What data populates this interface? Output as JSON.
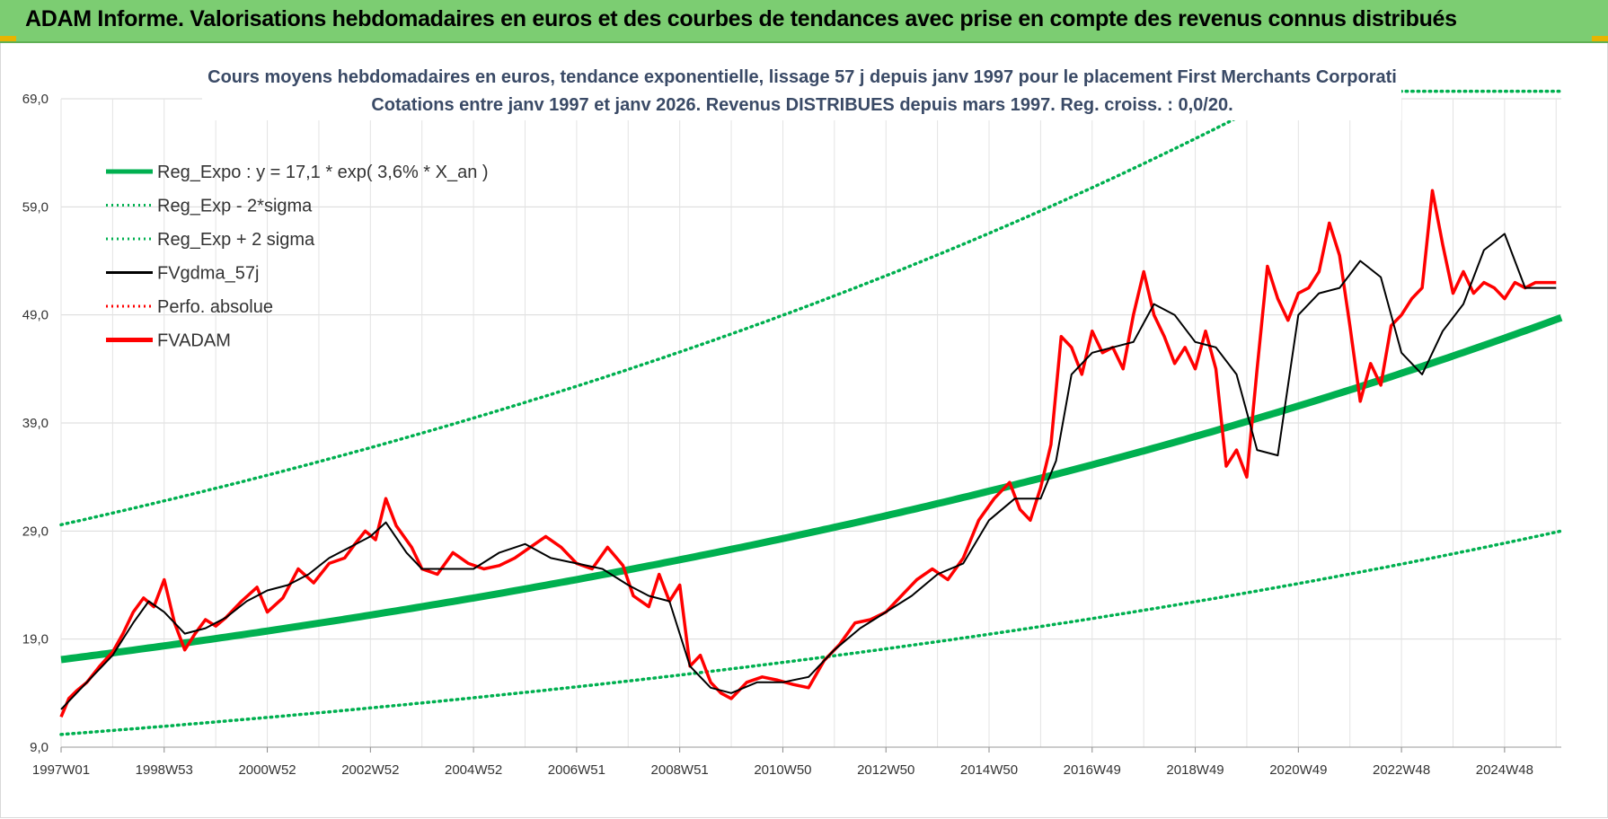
{
  "banner": {
    "title": "ADAM Informe. Valorisations hebdomadaires en euros et des courbes de tendances avec prise en compte des revenus connus distribués"
  },
  "colors": {
    "banner_bg": "#7ccd72",
    "trend": "#00b050",
    "price": "#ff0000",
    "smooth": "#000000",
    "title_text": "#3a4a66"
  },
  "chart_data": {
    "type": "line",
    "title": "Cours moyens hebdomadaires en euros, tendance exponentielle, lissage 57 j depuis janv 1997 pour le placement First Merchants Corporati",
    "subtitle": "Cotations entre janv 1997 et janv 2026. Revenus DISTRIBUES depuis mars 1997.  Reg. croiss. : 0,0/20.",
    "xlabel": "",
    "ylabel": "",
    "ylim": [
      9,
      69
    ],
    "yticks": [
      "69,0",
      "59,0",
      "49,0",
      "39,0",
      "29,0",
      "19,0",
      "9,0"
    ],
    "x_tick_labels": [
      "1997W01",
      "1998W53",
      "2000W52",
      "2002W52",
      "2004W52",
      "2006W51",
      "2008W51",
      "2010W50",
      "2012W50",
      "2014W50",
      "2016W49",
      "2018W49",
      "2020W49",
      "2022W48",
      "2024W48"
    ],
    "xlim": [
      1997.0,
      2026.1
    ],
    "grid": true,
    "legend_position": "top-left",
    "legend": [
      {
        "label": "Reg_Expo : y = 17,1 * exp( 3,6% *  X_an )",
        "style": "solid-thick",
        "color": "#00b050"
      },
      {
        "label": "Reg_Exp - 2*sigma",
        "style": "dotted",
        "color": "#00b050"
      },
      {
        "label": "Reg_Exp + 2 sigma",
        "style": "dotted",
        "color": "#00b050"
      },
      {
        "label": "FVgdma_57j",
        "style": "solid",
        "color": "#000000"
      },
      {
        "label": "Perfo. absolue",
        "style": "dotted",
        "color": "#ff0000"
      },
      {
        "label": "FVADAM",
        "style": "solid-thick",
        "color": "#ff0000"
      }
    ],
    "regression": {
      "a": 17.1,
      "rate": 0.036,
      "sigma_upper_factor": 1.73,
      "sigma_lower_factor": 0.595
    },
    "series": [
      {
        "name": "FVADAM",
        "x": [
          1997.0,
          1997.15,
          1997.3,
          1997.5,
          1997.75,
          1998.0,
          1998.2,
          1998.4,
          1998.6,
          1998.8,
          1999.0,
          1999.2,
          1999.4,
          1999.6,
          1999.8,
          2000.0,
          2000.2,
          2000.5,
          2000.8,
          2001.0,
          2001.3,
          2001.6,
          2001.9,
          2002.2,
          2002.5,
          2002.7,
          2002.9,
          2003.1,
          2003.3,
          2003.5,
          2003.8,
          2004.0,
          2004.3,
          2004.6,
          2004.9,
          2005.2,
          2005.5,
          2005.8,
          2006.1,
          2006.4,
          2006.7,
          2007.0,
          2007.3,
          2007.6,
          2007.9,
          2008.1,
          2008.4,
          2008.6,
          2008.8,
          2009.0,
          2009.2,
          2009.4,
          2009.6,
          2009.8,
          2010.0,
          2010.3,
          2010.6,
          2010.9,
          2011.2,
          2011.5,
          2011.8,
          2012.1,
          2012.4,
          2012.7,
          2013.0,
          2013.3,
          2013.6,
          2013.9,
          2014.2,
          2014.5,
          2014.8,
          2015.1,
          2015.4,
          2015.6,
          2015.8,
          2016.0,
          2016.2,
          2016.4,
          2016.6,
          2016.8,
          2017.0,
          2017.2,
          2017.4,
          2017.6,
          2017.8,
          2018.0,
          2018.2,
          2018.4,
          2018.6,
          2018.8,
          2019.0,
          2019.2,
          2019.4,
          2019.6,
          2019.8,
          2020.0,
          2020.2,
          2020.4,
          2020.6,
          2020.8,
          2021.0,
          2021.2,
          2021.4,
          2021.6,
          2021.8,
          2022.0,
          2022.2,
          2022.4,
          2022.6,
          2022.8,
          2023.0,
          2023.2,
          2023.4,
          2023.6,
          2023.8,
          2024.0,
          2024.2,
          2024.4,
          2024.6,
          2024.8,
          2025.0,
          2025.2,
          2025.4,
          2025.6,
          2025.8,
          2026.0
        ],
        "values": [
          11.8,
          13.5,
          14.2,
          15.0,
          16.5,
          17.8,
          19.5,
          21.5,
          22.8,
          22.0,
          24.5,
          20.5,
          18.0,
          19.5,
          20.8,
          20.2,
          21.0,
          22.5,
          23.8,
          21.5,
          22.8,
          25.5,
          24.2,
          26.0,
          26.5,
          27.8,
          29.0,
          28.2,
          32.0,
          29.5,
          27.5,
          25.5,
          25.0,
          27.0,
          26.0,
          25.5,
          25.8,
          26.5,
          27.5,
          28.5,
          27.5,
          26.0,
          25.5,
          27.5,
          25.8,
          23.0,
          22.0,
          25.0,
          22.5,
          24.0,
          16.5,
          17.5,
          15.0,
          14.0,
          13.5,
          15.0,
          15.5,
          15.2,
          14.8,
          14.5,
          17.0,
          18.5,
          20.5,
          20.8,
          21.5,
          23.0,
          24.5,
          25.5,
          24.5,
          26.5,
          30.0,
          32.0,
          33.5,
          31.0,
          30.0,
          33.0,
          37.0,
          47.0,
          46.0,
          43.5,
          47.5,
          45.5,
          46.0,
          44.0,
          49.0,
          53.0,
          49.0,
          47.0,
          44.5,
          46.0,
          44.0,
          47.5,
          44.0,
          35.0,
          36.5,
          34.0,
          44.0,
          53.5,
          50.5,
          48.5,
          51.0,
          51.5,
          53.0,
          57.5,
          54.5,
          48.0,
          41.0,
          44.5,
          42.5,
          48.0,
          49.0,
          50.5,
          51.5,
          60.5,
          55.5,
          51.0,
          53.0,
          51.0,
          52.0,
          51.5,
          50.5,
          52.0,
          51.5,
          52.0,
          52.0,
          52.0
        ]
      },
      {
        "name": "FVgdma_57j",
        "x": [
          1997.0,
          1997.3,
          1997.6,
          1998.0,
          1998.4,
          1998.7,
          1999.0,
          1999.4,
          1999.8,
          2000.2,
          2000.6,
          2001.0,
          2001.4,
          2001.8,
          2002.2,
          2002.6,
          2003.0,
          2003.3,
          2003.7,
          2004.0,
          2004.5,
          2005.0,
          2005.5,
          2006.0,
          2006.5,
          2007.0,
          2007.5,
          2008.0,
          2008.4,
          2008.8,
          2009.2,
          2009.6,
          2010.0,
          2010.5,
          2011.0,
          2011.5,
          2012.0,
          2012.5,
          2013.0,
          2013.5,
          2014.0,
          2014.5,
          2015.0,
          2015.5,
          2016.0,
          2016.3,
          2016.6,
          2017.0,
          2017.4,
          2017.8,
          2018.2,
          2018.6,
          2019.0,
          2019.4,
          2019.8,
          2020.2,
          2020.6,
          2021.0,
          2021.4,
          2021.8,
          2022.2,
          2022.6,
          2023.0,
          2023.4,
          2023.8,
          2024.2,
          2024.6,
          2025.0,
          2025.4,
          2025.8,
          2026.0
        ],
        "values": [
          12.5,
          14.0,
          15.5,
          17.5,
          20.5,
          22.5,
          21.5,
          19.5,
          20.0,
          21.0,
          22.5,
          23.5,
          24.0,
          25.0,
          26.5,
          27.5,
          28.5,
          29.8,
          27.0,
          25.5,
          25.5,
          25.5,
          27.0,
          27.8,
          26.5,
          26.0,
          25.5,
          24.0,
          23.0,
          22.5,
          16.5,
          14.5,
          14.0,
          15.0,
          15.0,
          15.5,
          18.0,
          20.0,
          21.5,
          23.0,
          25.0,
          26.0,
          30.0,
          32.0,
          32.0,
          35.5,
          43.5,
          45.5,
          46.0,
          46.5,
          50.0,
          49.0,
          46.5,
          46.0,
          43.5,
          36.5,
          36.0,
          49.0,
          51.0,
          51.5,
          54.0,
          52.5,
          45.5,
          43.5,
          47.5,
          50.0,
          55.0,
          56.5,
          51.5,
          51.5,
          51.5
        ]
      }
    ]
  }
}
